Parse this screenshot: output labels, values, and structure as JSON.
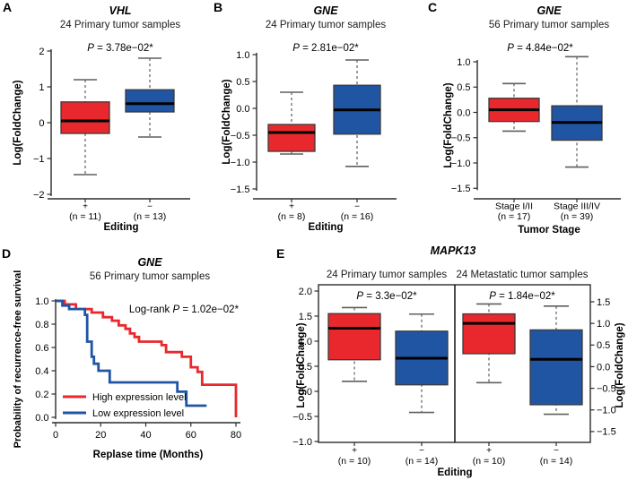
{
  "colors": {
    "red": "#E8282D",
    "blue": "#2055A4",
    "median": "#000000",
    "axis": "#2b2b2b",
    "whisker": "#5f5f5f",
    "box_border": "#3a3a3a",
    "text": "#000000"
  },
  "panels": {
    "A": {
      "label": "A",
      "title": "VHL",
      "subtitle": "24 Primary tumor samples",
      "pvalue": {
        "p": "P",
        "rest": " = 3.78e−02*"
      },
      "ylabel": "Log(FoldChange)",
      "xlabel": "Editing"
    },
    "B": {
      "label": "B",
      "title": "GNE",
      "subtitle": "24 Primary tumor samples",
      "pvalue": {
        "p": "P",
        "rest": " = 2.81e−02*"
      },
      "ylabel": "Log(FoldChange)",
      "xlabel": "Editing"
    },
    "C": {
      "label": "C",
      "title": "GNE",
      "subtitle": "56 Primary tumor samples",
      "pvalue": {
        "p": "P",
        "rest": " = 4.84e−02*"
      },
      "ylabel": "Log(FoldChange)",
      "xlabel": "Tumor Stage"
    },
    "D": {
      "label": "D",
      "title": "GNE",
      "subtitle": "56 Primary tumor samples",
      "annotation": {
        "prefix": "Log-rank ",
        "p": "P",
        "rest": " = 1.02e−02*"
      },
      "ylabel": "Probability of recurrence-free survival",
      "xlabel": "Replase time (Months)",
      "legend": [
        {
          "label": "High expression level",
          "color": "red"
        },
        {
          "label": "Low expression level",
          "color": "blue"
        }
      ]
    },
    "E": {
      "label": "E",
      "title": "MAPK13",
      "sub_left": "24 Primary tumor samples",
      "sub_right": "24 Metastatic tumor samples",
      "pvalue_left": {
        "p": "P",
        "rest": " = 3.3e−02*"
      },
      "pvalue_right": {
        "p": "P",
        "rest": " = 1.84e−02*"
      },
      "ylabel_left": "Log(FoldChange)",
      "ylabel_right": "Log(FoldChange)",
      "xlabel": "Editing"
    }
  },
  "chart_data": [
    {
      "panel": "A",
      "type": "box",
      "title": "VHL",
      "subtitle": "24 Primary tumor samples",
      "p_value": "3.78e-02*",
      "ylabel": "Log(FoldChange)",
      "xlabel": "Editing",
      "ylim": [
        -2.2,
        2.2
      ],
      "yticks": [
        2,
        1,
        0,
        -1,
        -2
      ],
      "groups": [
        {
          "tick": "+",
          "n_label": "(n = 11)",
          "color": "red",
          "low": -1.45,
          "q1": -0.3,
          "median": 0.05,
          "q3": 0.58,
          "high": 1.2
        },
        {
          "tick": "−",
          "n_label": "(n = 13)",
          "color": "blue",
          "low": -0.4,
          "q1": 0.3,
          "median": 0.53,
          "q3": 0.92,
          "high": 1.8
        }
      ]
    },
    {
      "panel": "B",
      "type": "box",
      "title": "GNE",
      "subtitle": "24 Primary tumor samples",
      "p_value": "2.81e-02*",
      "ylabel": "Log(FoldChange)",
      "xlabel": "Editing",
      "ylim": [
        -1.8,
        1.2
      ],
      "yticks": [
        1.0,
        0.5,
        0.0,
        -0.5,
        -1.0,
        -1.5
      ],
      "groups": [
        {
          "tick": "+",
          "n_label": "(n = 8)",
          "color": "red",
          "low": -0.85,
          "q1": -0.8,
          "median": -0.45,
          "q3": -0.3,
          "high": 0.3
        },
        {
          "tick": "−",
          "n_label": "(n = 16)",
          "color": "blue",
          "low": -1.08,
          "q1": -0.48,
          "median": -0.03,
          "q3": 0.43,
          "high": 0.9
        }
      ]
    },
    {
      "panel": "C",
      "type": "box",
      "title": "GNE",
      "subtitle": "56 Primary tumor samples",
      "p_value": "4.84e-02*",
      "ylabel": "Log(FoldChange)",
      "xlabel": "Tumor Stage",
      "ylim": [
        -1.8,
        1.3
      ],
      "yticks": [
        1.0,
        0.5,
        0.0,
        -0.5,
        -1.0,
        -1.5
      ],
      "groups": [
        {
          "tick": "Stage I/II",
          "n_label": "(n = 17)",
          "color": "red",
          "low": -0.37,
          "q1": -0.18,
          "median": 0.05,
          "q3": 0.28,
          "high": 0.57
        },
        {
          "tick": "Stage III/IV",
          "n_label": "(n = 39)",
          "color": "blue",
          "low": -1.08,
          "q1": -0.55,
          "median": -0.2,
          "q3": 0.13,
          "high": 1.1
        }
      ]
    },
    {
      "panel": "D",
      "type": "line_step",
      "title": "GNE",
      "subtitle": "56 Primary tumor samples",
      "annotation": "Log-rank P = 1.02e-02*",
      "ylabel": "Probability of recurrence-free survival",
      "xlabel": "Replase time (Months)",
      "xlim": [
        0,
        84
      ],
      "ylim": [
        0.0,
        1.05
      ],
      "xticks": [
        0,
        20,
        40,
        60,
        80
      ],
      "yticks": [
        1.0,
        0.8,
        0.6,
        0.4,
        0.2,
        0.0
      ],
      "legend_position": "bottom-left",
      "series": [
        {
          "name": "High expression level",
          "color": "red",
          "start": [
            0,
            1.0
          ],
          "end": 80,
          "steps": [
            [
              4,
              0.97
            ],
            [
              9,
              0.93
            ],
            [
              16,
              0.9
            ],
            [
              21,
              0.86
            ],
            [
              25,
              0.83
            ],
            [
              28,
              0.79
            ],
            [
              31,
              0.76
            ],
            [
              33,
              0.72
            ],
            [
              35,
              0.69
            ],
            [
              37,
              0.65
            ],
            [
              47,
              0.62
            ],
            [
              49,
              0.56
            ],
            [
              56,
              0.52
            ],
            [
              60,
              0.43
            ],
            [
              63,
              0.39
            ],
            [
              65,
              0.28
            ],
            [
              80,
              0.0
            ]
          ]
        },
        {
          "name": "Low expression level",
          "color": "blue",
          "start": [
            0,
            1.0
          ],
          "end": 67,
          "steps": [
            [
              3,
              0.96
            ],
            [
              6,
              0.93
            ],
            [
              13,
              0.88
            ],
            [
              14,
              0.65
            ],
            [
              16,
              0.52
            ],
            [
              17,
              0.46
            ],
            [
              19,
              0.4
            ],
            [
              24,
              0.3
            ],
            [
              54,
              0.22
            ],
            [
              58,
              0.1
            ]
          ]
        }
      ]
    },
    {
      "panel": "E",
      "type": "box",
      "title": "MAPK13",
      "xlabel": "Editing",
      "ylabel_left": "Log(FoldChange)",
      "ylabel_right": "Log(FoldChange)",
      "sub_panels": [
        {
          "subtitle": "24 Primary tumor samples",
          "p_value": "3.3e-02*",
          "axis": "left",
          "ylim": [
            -1.05,
            2.1
          ],
          "yticks": [
            2.0,
            1.5,
            1.0,
            0.5,
            0.0,
            -0.5,
            -1.0
          ],
          "groups": [
            {
              "tick": "+",
              "n_label": "(n = 10)",
              "color": "red",
              "low": 0.2,
              "q1": 0.63,
              "median": 1.26,
              "q3": 1.55,
              "high": 1.67
            },
            {
              "tick": "−",
              "n_label": "(n = 14)",
              "color": "blue",
              "low": -0.42,
              "q1": 0.13,
              "median": 0.66,
              "q3": 1.2,
              "high": 1.54
            }
          ]
        },
        {
          "subtitle": "24 Metastatic tumor samples",
          "p_value": "1.84e-02*",
          "axis": "right",
          "ylim": [
            -1.8,
            1.95
          ],
          "yticks": [
            1.5,
            1.0,
            0.5,
            0.0,
            -0.5,
            -1.0,
            -1.5
          ],
          "groups": [
            {
              "tick": "+",
              "n_label": "(n = 10)",
              "color": "red",
              "low": -0.37,
              "q1": 0.3,
              "median": 1.0,
              "q3": 1.22,
              "high": 1.45
            },
            {
              "tick": "−",
              "n_label": "(n = 14)",
              "color": "blue",
              "low": -1.1,
              "q1": -0.88,
              "median": 0.17,
              "q3": 0.85,
              "high": 1.4
            }
          ]
        }
      ]
    }
  ]
}
